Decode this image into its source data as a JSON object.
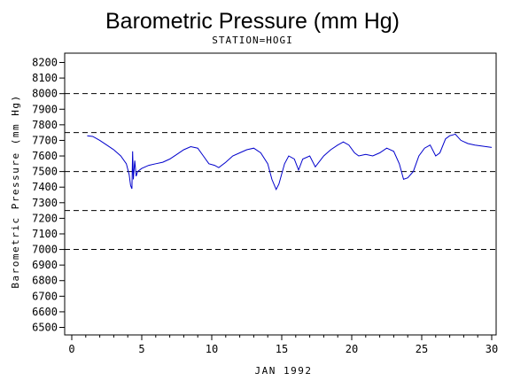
{
  "chart_data": {
    "type": "line",
    "title": "Barometric Pressure (mm Hg)",
    "subtitle": "STATION=HOGI",
    "xlabel": "JAN 1992",
    "ylabel": "Barometric Pressure (mm Hg)",
    "xlim": [
      0,
      30
    ],
    "ylim": [
      6500,
      8200
    ],
    "x_ticks": [
      0,
      5,
      10,
      15,
      20,
      25,
      30
    ],
    "y_ticks": [
      6500,
      6600,
      6700,
      6800,
      6900,
      7000,
      7100,
      7200,
      7300,
      7400,
      7500,
      7600,
      7700,
      7800,
      7900,
      8000,
      8100,
      8200
    ],
    "reference_lines": [
      7000,
      7250,
      7500,
      7750,
      8000
    ],
    "line_color": "#0000cc",
    "series": [
      {
        "name": "",
        "points": [
          [
            1.1,
            7730
          ],
          [
            1.5,
            7725
          ],
          [
            2.0,
            7700
          ],
          [
            2.5,
            7670
          ],
          [
            3.0,
            7640
          ],
          [
            3.5,
            7600
          ],
          [
            3.9,
            7550
          ],
          [
            4.1,
            7480
          ],
          [
            4.2,
            7410
          ],
          [
            4.3,
            7390
          ],
          [
            4.35,
            7630
          ],
          [
            4.4,
            7450
          ],
          [
            4.5,
            7570
          ],
          [
            4.6,
            7470
          ],
          [
            4.7,
            7500
          ],
          [
            5.0,
            7520
          ],
          [
            5.5,
            7540
          ],
          [
            6.0,
            7550
          ],
          [
            6.5,
            7560
          ],
          [
            7.0,
            7580
          ],
          [
            7.5,
            7610
          ],
          [
            8.0,
            7640
          ],
          [
            8.5,
            7660
          ],
          [
            9.0,
            7650
          ],
          [
            9.4,
            7600
          ],
          [
            9.8,
            7550
          ],
          [
            10.2,
            7540
          ],
          [
            10.5,
            7525
          ],
          [
            11.0,
            7560
          ],
          [
            11.5,
            7600
          ],
          [
            12.0,
            7620
          ],
          [
            12.5,
            7640
          ],
          [
            13.0,
            7650
          ],
          [
            13.5,
            7620
          ],
          [
            14.0,
            7550
          ],
          [
            14.3,
            7450
          ],
          [
            14.6,
            7385
          ],
          [
            14.8,
            7420
          ],
          [
            15.2,
            7550
          ],
          [
            15.5,
            7600
          ],
          [
            15.9,
            7580
          ],
          [
            16.2,
            7510
          ],
          [
            16.5,
            7580
          ],
          [
            17.0,
            7600
          ],
          [
            17.4,
            7530
          ],
          [
            18.0,
            7600
          ],
          [
            18.5,
            7640
          ],
          [
            19.0,
            7670
          ],
          [
            19.4,
            7690
          ],
          [
            19.8,
            7670
          ],
          [
            20.2,
            7620
          ],
          [
            20.5,
            7600
          ],
          [
            21.0,
            7610
          ],
          [
            21.5,
            7600
          ],
          [
            22.0,
            7620
          ],
          [
            22.5,
            7650
          ],
          [
            23.0,
            7630
          ],
          [
            23.4,
            7550
          ],
          [
            23.7,
            7450
          ],
          [
            24.0,
            7460
          ],
          [
            24.4,
            7500
          ],
          [
            24.8,
            7600
          ],
          [
            25.2,
            7650
          ],
          [
            25.6,
            7670
          ],
          [
            26.0,
            7600
          ],
          [
            26.3,
            7620
          ],
          [
            26.7,
            7710
          ],
          [
            27.0,
            7730
          ],
          [
            27.4,
            7740
          ],
          [
            27.8,
            7700
          ],
          [
            28.3,
            7680
          ],
          [
            28.8,
            7670
          ],
          [
            29.2,
            7665
          ],
          [
            29.6,
            7660
          ],
          [
            30.0,
            7655
          ]
        ]
      }
    ]
  }
}
